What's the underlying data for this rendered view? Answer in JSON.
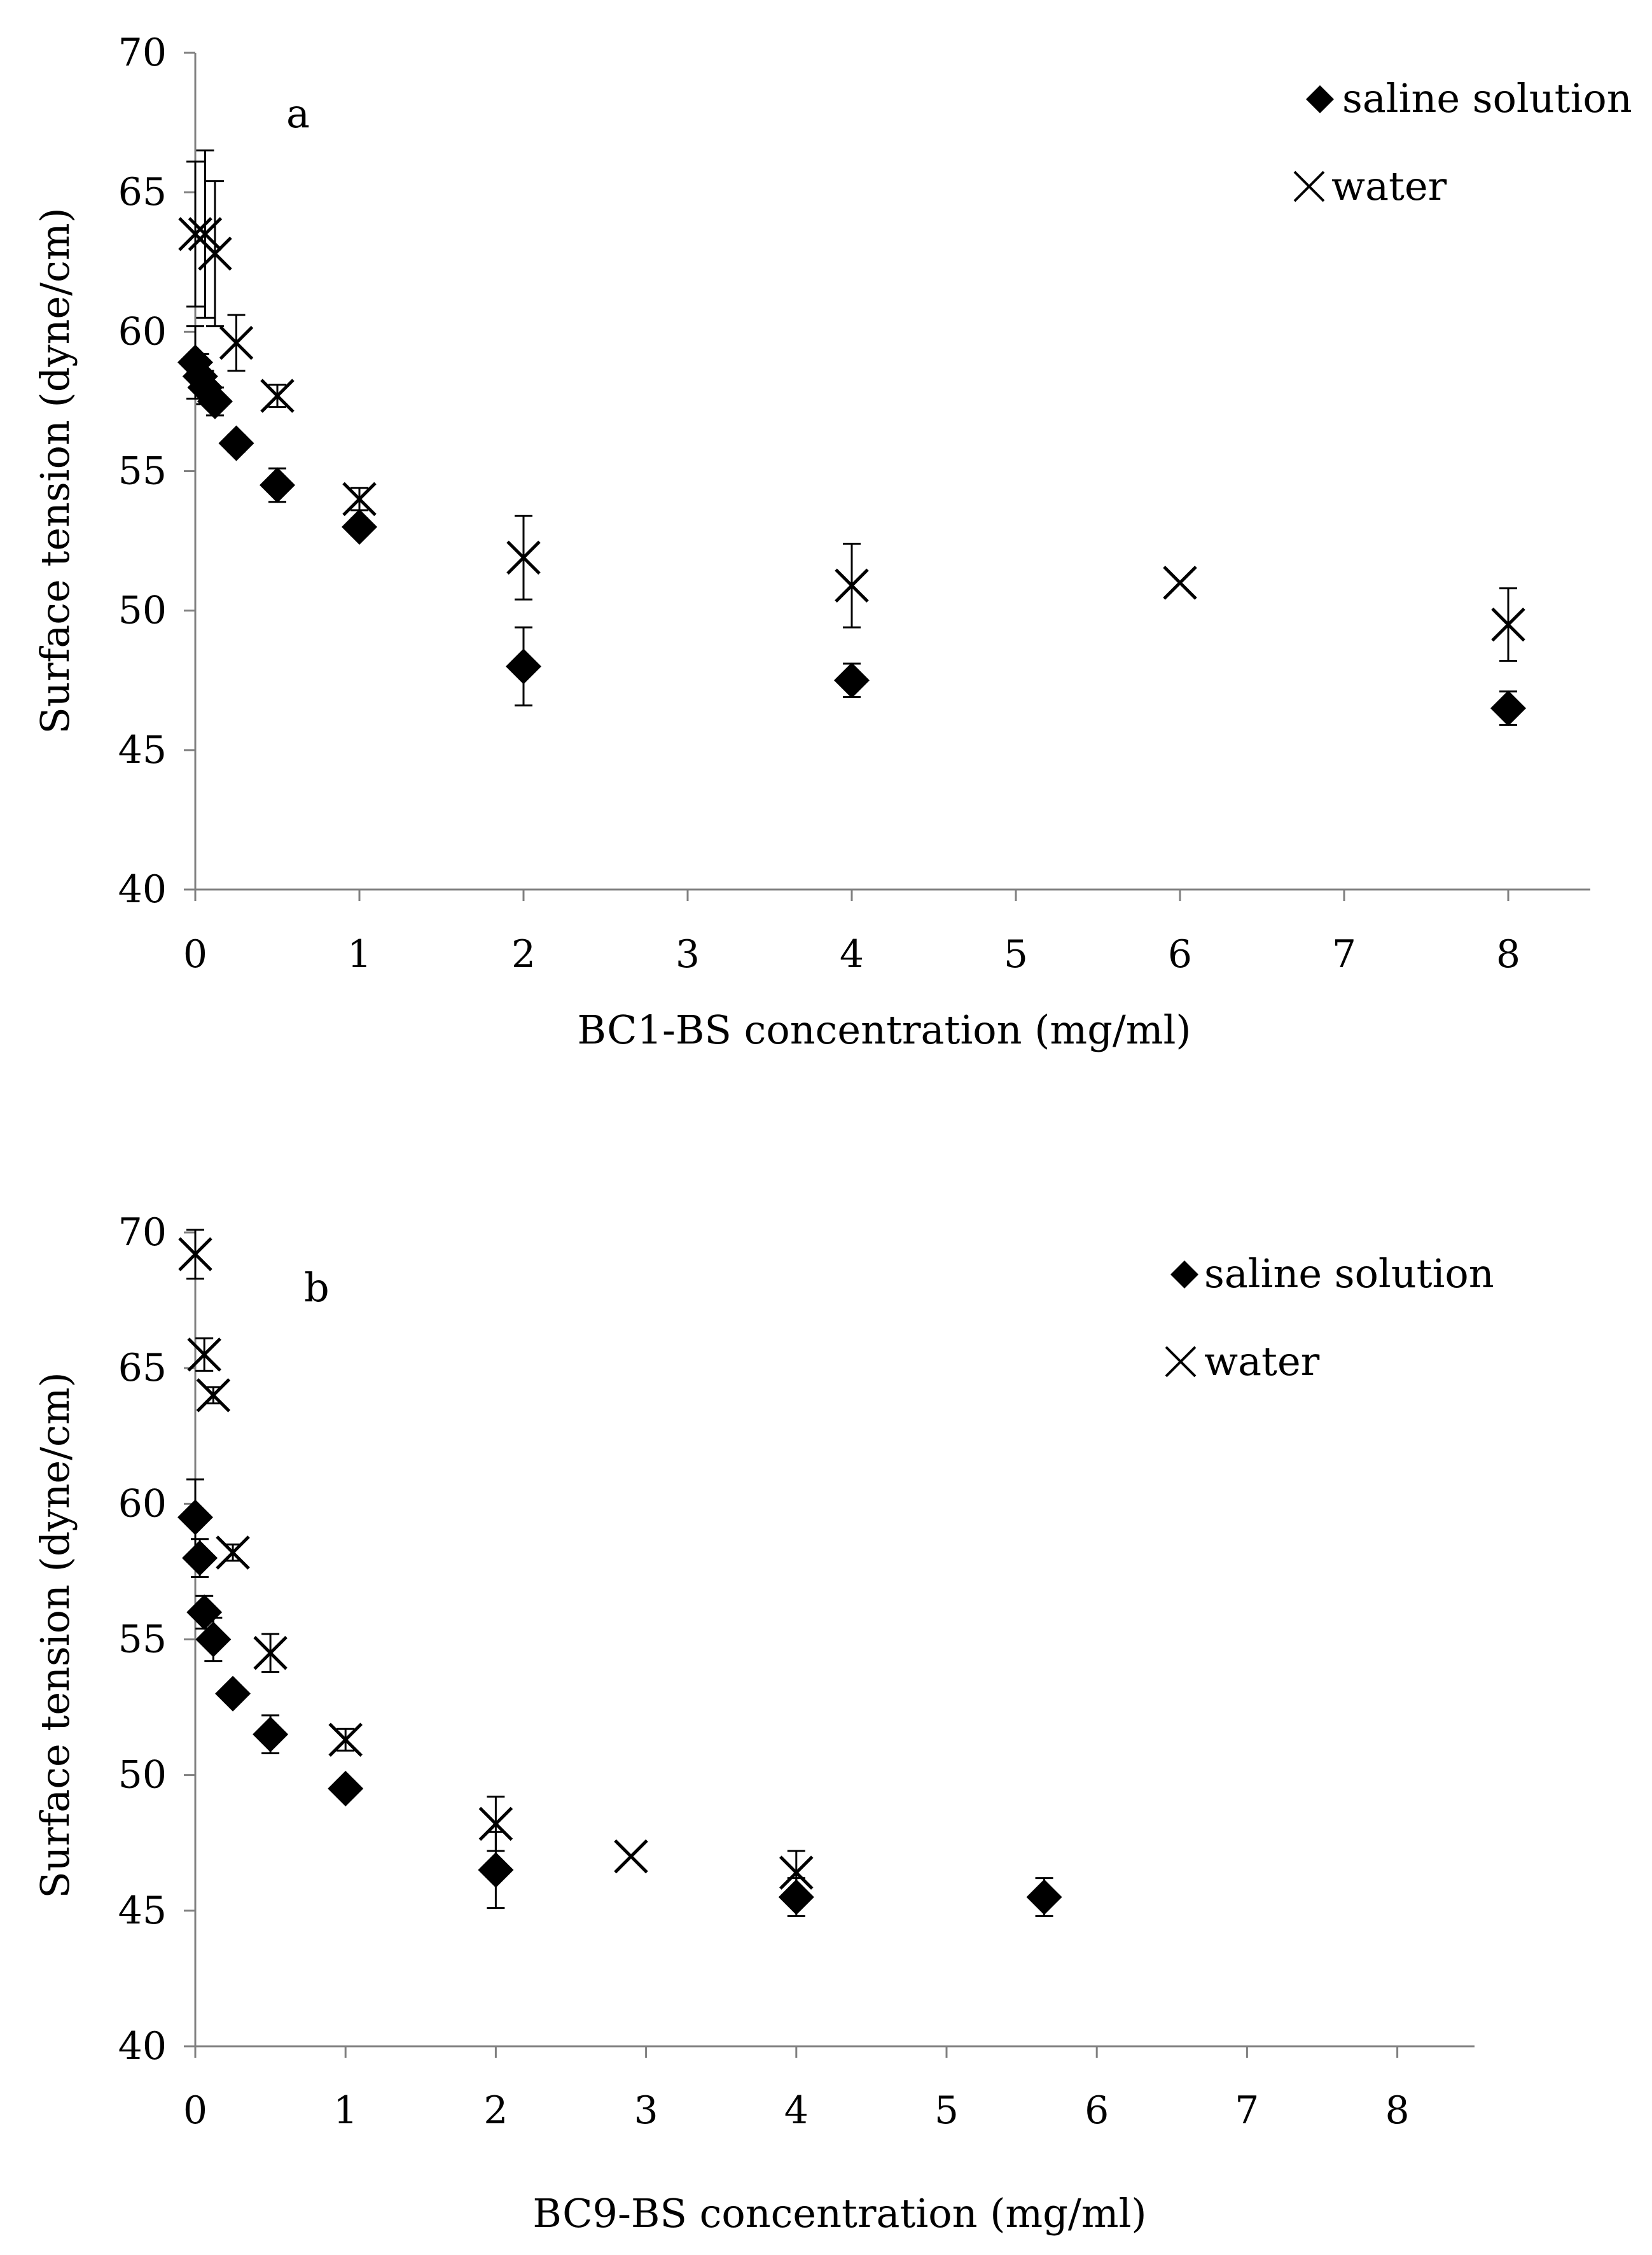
{
  "chart_data": [
    {
      "type": "scatter",
      "panel_label": "a",
      "xlabel": "BC1-BS concentration (mg/ml)",
      "ylabel": "Surface tension (dyne/cm)",
      "xlim": [
        0,
        8.5
      ],
      "ylim": [
        40,
        70
      ],
      "x_ticks": [
        0,
        1,
        2,
        3,
        4,
        5,
        6,
        7,
        8
      ],
      "y_ticks": [
        40,
        45,
        50,
        55,
        60,
        65,
        70
      ],
      "grid": false,
      "legend_position": "top-right",
      "series": [
        {
          "name": "saline solution",
          "marker": "diamond",
          "points": [
            {
              "x": 0.0,
              "y": 58.9,
              "err": 1.3
            },
            {
              "x": 0.03,
              "y": 58.4,
              "err": 0.8
            },
            {
              "x": 0.06,
              "y": 58.0,
              "err": 0.6
            },
            {
              "x": 0.12,
              "y": 57.5,
              "err": 0.5
            },
            {
              "x": 0.25,
              "y": 56.0,
              "err": 0.3
            },
            {
              "x": 0.5,
              "y": 54.5,
              "err": 0.6
            },
            {
              "x": 1.0,
              "y": 53.0,
              "err": 0.3
            },
            {
              "x": 2.0,
              "y": 48.0,
              "err": 1.4
            },
            {
              "x": 4.0,
              "y": 47.5,
              "err": 0.6
            },
            {
              "x": 8.0,
              "y": 46.5,
              "err": 0.6
            }
          ]
        },
        {
          "name": "water",
          "marker": "x",
          "points": [
            {
              "x": 0.0,
              "y": 63.5,
              "err": 2.6
            },
            {
              "x": 0.06,
              "y": 63.5,
              "err": 3.0
            },
            {
              "x": 0.12,
              "y": 62.8,
              "err": 2.6
            },
            {
              "x": 0.25,
              "y": 59.6,
              "err": 1.0
            },
            {
              "x": 0.5,
              "y": 57.7,
              "err": 0.4
            },
            {
              "x": 1.0,
              "y": 54.0,
              "err": 0.4
            },
            {
              "x": 2.0,
              "y": 51.9,
              "err": 1.5
            },
            {
              "x": 4.0,
              "y": 50.9,
              "err": 1.5
            },
            {
              "x": 6.0,
              "y": 51.0,
              "err": 0.0
            },
            {
              "x": 8.0,
              "y": 49.5,
              "err": 1.3
            }
          ]
        }
      ]
    },
    {
      "type": "scatter",
      "panel_label": "b",
      "xlabel": "BC9-BS concentration (mg/ml)",
      "ylabel": "Surface tension (dyne/cm)",
      "xlim": [
        0,
        8.5
      ],
      "ylim": [
        40,
        70
      ],
      "x_ticks": [
        0,
        1,
        2,
        3,
        4,
        5,
        6,
        7,
        8
      ],
      "y_ticks": [
        40,
        45,
        50,
        55,
        60,
        65,
        70
      ],
      "grid": false,
      "legend_position": "top-right",
      "series": [
        {
          "name": "saline solution",
          "marker": "diamond",
          "points": [
            {
              "x": 0.0,
              "y": 59.5,
              "err": 1.4
            },
            {
              "x": 0.03,
              "y": 58.0,
              "err": 0.7
            },
            {
              "x": 0.06,
              "y": 56.0,
              "err": 0.6
            },
            {
              "x": 0.12,
              "y": 55.0,
              "err": 0.8
            },
            {
              "x": 0.25,
              "y": 53.0,
              "err": 0.3
            },
            {
              "x": 0.5,
              "y": 51.5,
              "err": 0.7
            },
            {
              "x": 1.0,
              "y": 49.5,
              "err": 0.3
            },
            {
              "x": 2.0,
              "y": 46.5,
              "err": 1.4
            },
            {
              "x": 4.0,
              "y": 45.5,
              "err": 0.7
            },
            {
              "x": 5.65,
              "y": 45.5,
              "err": 0.7
            }
          ]
        },
        {
          "name": "water",
          "marker": "x",
          "points": [
            {
              "x": 0.0,
              "y": 69.2,
              "err": 0.9
            },
            {
              "x": 0.06,
              "y": 65.5,
              "err": 0.6
            },
            {
              "x": 0.12,
              "y": 64.0,
              "err": 0.3
            },
            {
              "x": 0.25,
              "y": 58.2,
              "err": 0.3
            },
            {
              "x": 0.5,
              "y": 54.5,
              "err": 0.7
            },
            {
              "x": 1.0,
              "y": 51.3,
              "err": 0.4
            },
            {
              "x": 2.0,
              "y": 48.2,
              "err": 1.0
            },
            {
              "x": 2.9,
              "y": 47.0,
              "err": 0.0
            },
            {
              "x": 4.0,
              "y": 46.4,
              "err": 0.8
            }
          ]
        }
      ]
    }
  ]
}
